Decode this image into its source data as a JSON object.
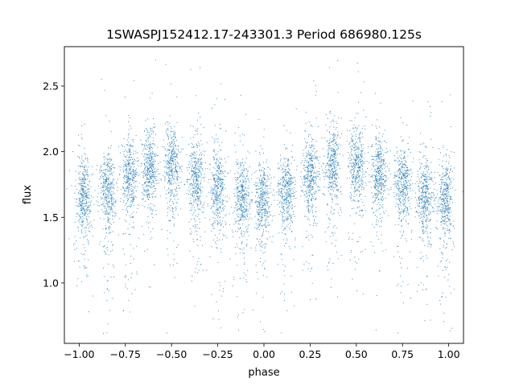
{
  "chart_data": {
    "type": "scatter",
    "title": "1SWASPJ152412.17-243301.3 Period 686980.125s",
    "xlabel": "phase",
    "ylabel": "flux",
    "xlim": [
      -1.08,
      1.08
    ],
    "ylim": [
      0.54,
      2.8
    ],
    "xticks": [
      -1.0,
      -0.75,
      -0.5,
      -0.25,
      0.0,
      0.25,
      0.5,
      0.75,
      1.0
    ],
    "xtick_labels": [
      "−1.00",
      "−0.75",
      "−0.50",
      "−0.25",
      "0.00",
      "0.25",
      "0.50",
      "0.75",
      "1.00"
    ],
    "yticks": [
      1.0,
      1.5,
      2.0,
      2.5
    ],
    "ytick_labels": [
      "1.0",
      "1.5",
      "2.0",
      "2.5"
    ],
    "grid": false,
    "marker_color": "#1f77b4",
    "clusters": [
      {
        "phase": -0.98,
        "flux": 1.68
      },
      {
        "phase": -0.85,
        "flux": 1.72
      },
      {
        "phase": -0.73,
        "flux": 1.84
      },
      {
        "phase": -0.62,
        "flux": 1.9
      },
      {
        "phase": -0.5,
        "flux": 1.92
      },
      {
        "phase": -0.37,
        "flux": 1.82
      },
      {
        "phase": -0.25,
        "flux": 1.74
      },
      {
        "phase": -0.12,
        "flux": 1.66
      },
      {
        "phase": -0.01,
        "flux": 1.64
      },
      {
        "phase": 0.12,
        "flux": 1.7
      },
      {
        "phase": 0.25,
        "flux": 1.84
      },
      {
        "phase": 0.37,
        "flux": 1.92
      },
      {
        "phase": 0.5,
        "flux": 1.92
      },
      {
        "phase": 0.62,
        "flux": 1.84
      },
      {
        "phase": 0.75,
        "flux": 1.76
      },
      {
        "phase": 0.87,
        "flux": 1.68
      },
      {
        "phase": 0.98,
        "flux": 1.66
      }
    ]
  }
}
